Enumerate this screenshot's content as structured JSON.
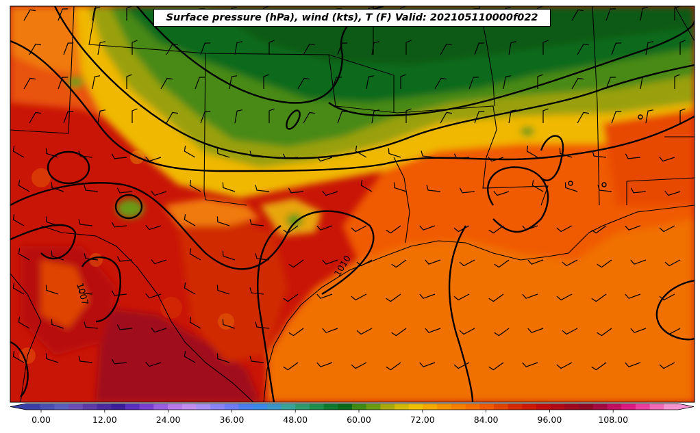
{
  "title": "Surface pressure (hPa), wind (kts), T (F) Valid: 202105110000f022",
  "colorbar": {
    "tick_labels": [
      "0.00",
      "12.00",
      "24.00",
      "36.00",
      "48.00",
      "60.00",
      "72.00",
      "84.00",
      "96.00",
      "108.00"
    ],
    "colors": [
      "#3b3fa8",
      "#4a4fb3",
      "#5a5fbf",
      "#6a4fb8",
      "#5e3aa8",
      "#4b2aa0",
      "#3d1e9a",
      "#5a2ebf",
      "#7a3fd0",
      "#9a5ee0",
      "#b77ae8",
      "#c38ef0",
      "#a890f5",
      "#8a84f5",
      "#6e7cf5",
      "#4a7ff2",
      "#3a88e8",
      "#3a96c8",
      "#3aa39a",
      "#2e9a6e",
      "#1f8f4c",
      "#0d7a30",
      "#0b6a1a",
      "#3e8a14",
      "#6a9a12",
      "#a8a80e",
      "#d4b80a",
      "#f0c000",
      "#f5a800",
      "#f59200",
      "#f58000",
      "#f56e00",
      "#ef5a00",
      "#e04400",
      "#d62a00",
      "#cc1a00",
      "#c00c0a",
      "#b00a14",
      "#a0081e",
      "#900824",
      "#a20a40",
      "#c00e60",
      "#da1a80",
      "#ea3e9e",
      "#f06ab8",
      "#f592cf"
    ]
  },
  "contour_labels": [
    "1010",
    "1007"
  ],
  "colors": {
    "land_hot": "#c40f06",
    "gulf": "#f06e00",
    "north_green": "#0d6a1c"
  }
}
